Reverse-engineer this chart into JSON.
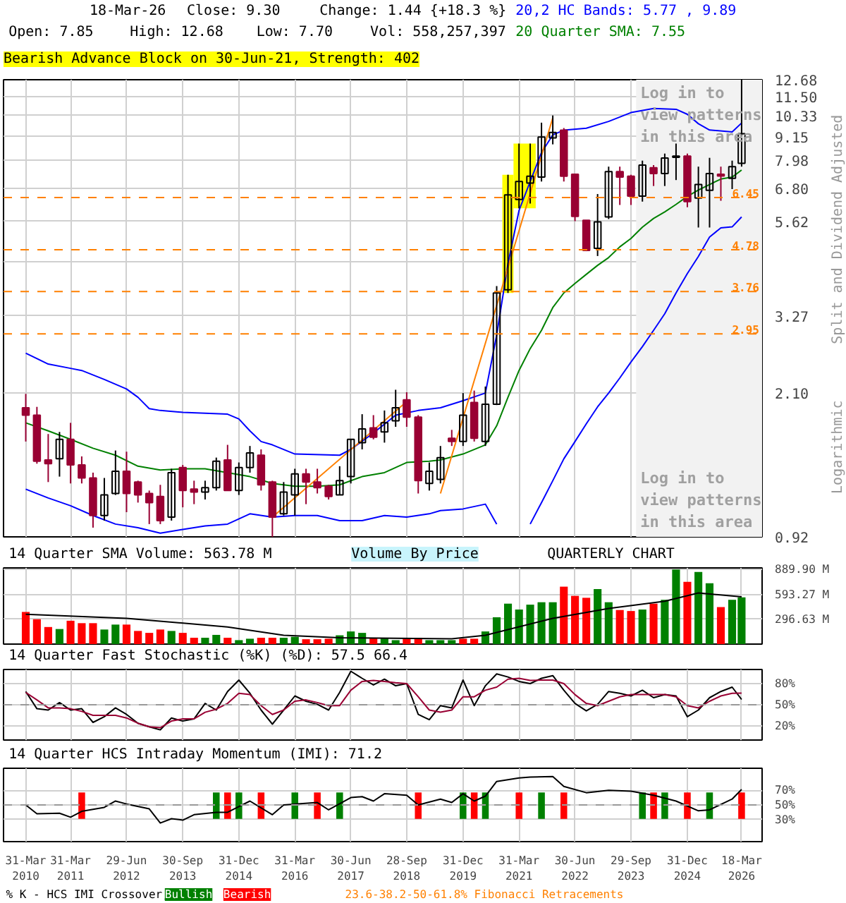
{
  "chart_data": [
    {
      "type": "candlestick",
      "title": "Bearish Advance Block on 30-Jun-21, Strength: 402",
      "ylabel": "Split and Dividend Adjusted",
      "annotations": [
        "18-Mar-26",
        "Close: 9.30",
        "Change: 1.44 {+18.3 %}",
        "Open: 7.85",
        "High: 12.68",
        "Low: 7.70",
        "Vol: 558,257,397",
        "Logarithmic",
        "Volume By Price"
      ],
      "x": [
        "2010-03-31",
        "2010-06-30",
        "2010-09-30",
        "2010-12-31",
        "2011-03-31",
        "2011-06-30",
        "2011-09-30",
        "2011-12-31",
        "2012-03-31",
        "2012-06-29",
        "2012-09-30",
        "2012-12-31",
        "2013-03-31",
        "2013-06-30",
        "2013-09-30",
        "2013-12-31",
        "2014-03-31",
        "2014-06-30",
        "2014-09-30",
        "2014-12-31",
        "2015-03-31",
        "2015-06-30",
        "2015-09-30",
        "2015-12-31",
        "2016-03-31",
        "2016-06-30",
        "2016-09-30",
        "2016-12-31",
        "2017-03-31",
        "2017-06-30",
        "2017-09-30",
        "2017-12-31",
        "2018-03-31",
        "2018-06-30",
        "2018-09-28",
        "2018-12-31",
        "2019-03-31",
        "2019-06-30",
        "2019-09-30",
        "2019-12-31",
        "2020-03-31",
        "2020-06-30",
        "2020-09-30",
        "2020-12-31",
        "2021-03-31",
        "2021-06-30",
        "2021-09-30",
        "2021-12-31",
        "2022-03-31",
        "2022-06-30",
        "2022-09-30",
        "2022-12-31",
        "2023-03-31",
        "2023-06-30",
        "2023-09-29",
        "2023-12-31",
        "2024-03-31",
        "2024-06-30",
        "2024-09-30",
        "2024-12-31",
        "2025-03-31",
        "2025-06-30",
        "2025-09-30",
        "2025-12-31",
        "2026-03-18"
      ],
      "ohlc": [
        [
          1.93,
          2.09,
          1.59,
          1.85
        ],
        [
          1.85,
          1.94,
          1.4,
          1.42
        ],
        [
          1.43,
          1.66,
          1.26,
          1.4
        ],
        [
          1.44,
          1.68,
          1.3,
          1.61
        ],
        [
          1.61,
          1.77,
          1.25,
          1.39
        ],
        [
          1.39,
          1.46,
          1.25,
          1.29
        ],
        [
          1.29,
          1.33,
          0.97,
          1.04
        ],
        [
          1.04,
          1.29,
          1.01,
          1.17
        ],
        [
          1.18,
          1.51,
          1.17,
          1.34
        ],
        [
          1.34,
          1.5,
          1.06,
          1.18
        ],
        [
          1.26,
          1.27,
          1.12,
          1.17
        ],
        [
          1.18,
          1.2,
          0.99,
          1.12
        ],
        [
          1.16,
          1.24,
          0.99,
          1.01
        ],
        [
          1.03,
          1.36,
          1.01,
          1.33
        ],
        [
          1.37,
          1.39,
          1.09,
          1.2
        ],
        [
          1.21,
          1.27,
          1.11,
          1.19
        ],
        [
          1.19,
          1.27,
          1.14,
          1.22
        ],
        [
          1.22,
          1.45,
          1.2,
          1.42
        ],
        [
          1.43,
          1.56,
          1.2,
          1.2
        ],
        [
          1.2,
          1.41,
          1.17,
          1.37
        ],
        [
          1.37,
          1.55,
          1.33,
          1.49
        ],
        [
          1.47,
          1.52,
          1.2,
          1.24
        ],
        [
          1.26,
          1.27,
          0.92,
          1.03
        ],
        [
          1.05,
          1.26,
          1.04,
          1.19
        ],
        [
          1.17,
          1.36,
          1.04,
          1.32
        ],
        [
          1.32,
          1.36,
          1.11,
          1.26
        ],
        [
          1.26,
          1.36,
          1.18,
          1.22
        ],
        [
          1.23,
          1.24,
          1.14,
          1.16
        ],
        [
          1.17,
          1.38,
          1.17,
          1.27
        ],
        [
          1.3,
          1.61,
          1.25,
          1.61
        ],
        [
          1.58,
          1.86,
          1.52,
          1.71
        ],
        [
          1.72,
          1.85,
          1.61,
          1.63
        ],
        [
          1.68,
          1.9,
          1.58,
          1.77
        ],
        [
          1.79,
          2.14,
          1.73,
          1.93
        ],
        [
          2.02,
          2.11,
          1.73,
          1.83
        ],
        [
          1.83,
          1.85,
          1.18,
          1.27
        ],
        [
          1.25,
          1.41,
          1.2,
          1.34
        ],
        [
          1.28,
          1.55,
          1.25,
          1.45
        ],
        [
          1.62,
          1.7,
          1.55,
          1.59
        ],
        [
          1.59,
          2.1,
          1.55,
          1.85
        ],
        [
          1.99,
          2.13,
          1.59,
          1.62
        ],
        [
          1.59,
          2.18,
          1.55,
          1.97
        ],
        [
          1.97,
          3.88,
          1.96,
          3.73
        ],
        [
          3.8,
          7.35,
          3.73,
          6.55
        ],
        [
          6.38,
          8.79,
          6.06,
          7.07
        ],
        [
          7.01,
          8.79,
          6.23,
          7.29
        ],
        [
          7.25,
          9.91,
          7.07,
          9.13
        ],
        [
          9.08,
          10.33,
          8.75,
          9.37
        ],
        [
          9.49,
          9.61,
          7.07,
          7.29
        ],
        [
          7.37,
          7.37,
          5.63,
          5.79
        ],
        [
          5.66,
          5.66,
          4.74,
          4.76
        ],
        [
          4.82,
          6.58,
          4.61,
          5.61
        ],
        [
          5.77,
          7.7,
          5.7,
          7.48
        ],
        [
          7.48,
          7.7,
          6.18,
          7.25
        ],
        [
          7.29,
          7.35,
          6.18,
          6.5
        ],
        [
          6.5,
          7.97,
          6.3,
          7.77
        ],
        [
          7.65,
          7.77,
          6.89,
          7.4
        ],
        [
          7.4,
          8.3,
          6.89,
          8.09
        ],
        [
          8.12,
          8.79,
          7.13,
          8.18
        ],
        [
          8.18,
          8.3,
          6.1,
          6.3
        ],
        [
          6.43,
          7.7,
          5.43,
          6.95
        ],
        [
          6.72,
          8.1,
          5.43,
          7.4
        ],
        [
          7.37,
          7.7,
          6.33,
          7.3
        ],
        [
          7.2,
          7.97,
          6.77,
          7.7
        ],
        [
          7.85,
          12.68,
          7.7,
          9.3
        ]
      ],
      "colors": [
        "#990033",
        "#990033",
        "#990033",
        "#000000",
        "#990033",
        "#990033",
        "#990033",
        "#000000",
        "#000000",
        "#990033",
        "#990033",
        "#990033",
        "#990033",
        "#000000",
        "#990033",
        "#990033",
        "#000000",
        "#000000",
        "#990033",
        "#000000",
        "#000000",
        "#990033",
        "#990033",
        "#000000",
        "#000000",
        "#990033",
        "#990033",
        "#990033",
        "#000000",
        "#000000",
        "#000000",
        "#990033",
        "#000000",
        "#000000",
        "#990033",
        "#990033",
        "#000000",
        "#000000",
        "#990033",
        "#000000",
        "#990033",
        "#000000",
        "#000000",
        "#000000",
        "#000000",
        "#000000",
        "#000000",
        "#000000",
        "#990033",
        "#990033",
        "#990033",
        "#000000",
        "#000000",
        "#990033",
        "#990033",
        "#000000",
        "#990033",
        "#000000",
        "#000000",
        "#990033",
        "#000000",
        "#000000",
        "#990033",
        "#000000",
        "#000000"
      ],
      "series": [
        {
          "type": "line",
          "name": "20,2 HC Bands: 5.77 , 9.89",
          "color": "#0000ff",
          "x": [
            "2010-03-31",
            "2010-09-30",
            "2011-03-31",
            "2011-06-30",
            "2011-12-31",
            "2012-06-29",
            "2012-09-30",
            "2012-12-31",
            "2013-03-31",
            "2013-09-30",
            "2014-09-30",
            "2014-12-31",
            "2015-03-31",
            "2015-06-30",
            "2015-09-30",
            "2016-03-31",
            "2017-03-31",
            "2017-06-30",
            "2017-12-31",
            "2018-06-30",
            "2018-12-31",
            "2019-06-30",
            "2019-12-31",
            "2020-06-30",
            "2020-09-30",
            "2020-12-31",
            "2021-03-31",
            "2021-06-30",
            "2021-09-30",
            "2021-12-31",
            "2022-03-31",
            "2022-09-30",
            "2023-03-31",
            "2023-09-29",
            "2024-03-31",
            "2024-09-30",
            "2024-12-31",
            "2025-03-31",
            "2025-06-30",
            "2025-12-31",
            "2026-03-18"
          ],
          "values": [
            2.64,
            2.48,
            2.42,
            2.39,
            2.27,
            2.15,
            2.05,
            1.92,
            1.9,
            1.88,
            1.86,
            1.81,
            1.69,
            1.59,
            1.56,
            1.48,
            1.47,
            1.52,
            1.67,
            1.85,
            1.9,
            1.93,
            2.01,
            2.1,
            2.93,
            4.41,
            5.99,
            7.07,
            8.35,
            9.24,
            9.49,
            9.6,
            9.98,
            10.5,
            10.75,
            10.7,
            10.4,
            9.85,
            9.5,
            9.4,
            9.89
          ]
        },
        {
          "type": "line",
          "color": "#0000ff",
          "x": [
            "2010-03-31",
            "2010-09-30",
            "2011-03-31",
            "2011-09-30",
            "2012-03-31",
            "2012-09-30",
            "2013-03-31",
            "2013-09-30",
            "2014-03-31",
            "2014-09-30",
            "2015-03-31",
            "2015-09-30",
            "2016-03-31",
            "2016-09-30",
            "2017-03-31",
            "2017-09-30",
            "2018-03-31",
            "2018-09-28",
            "2019-03-31",
            "2019-06-30",
            "2019-12-31",
            "2020-06-30",
            "2020-09-30",
            "2020-12-31",
            "2021-03-31",
            "2021-06-30",
            "2021-09-30",
            "2021-12-31",
            "2022-03-31",
            "2022-06-30",
            "2022-09-30",
            "2022-12-31",
            "2023-03-31",
            "2023-06-30",
            "2023-09-29",
            "2023-12-31",
            "2024-03-31",
            "2024-06-30",
            "2024-09-30",
            "2024-12-31",
            "2025-03-31",
            "2025-06-30",
            "2025-09-30",
            "2025-12-31",
            "2026-03-18"
          ],
          "values": [
            1.21,
            1.15,
            1.1,
            1.04,
            0.99,
            0.97,
            0.94,
            0.96,
            0.98,
            0.99,
            1.05,
            1.03,
            1.04,
            1.04,
            1.01,
            1.01,
            1.04,
            1.03,
            1.05,
            1.07,
            1.08,
            1.11,
            0.99,
            null,
            null,
            0.99,
            1.12,
            1.27,
            1.44,
            1.59,
            1.76,
            1.94,
            2.1,
            2.29,
            2.51,
            2.74,
            3.01,
            3.31,
            3.73,
            4.17,
            4.6,
            5.14,
            5.42,
            5.45,
            5.77
          ]
        },
        {
          "type": "line",
          "name": "20 Quarter SMA: 7.55",
          "color": "#008000",
          "x": [
            "2010-03-31",
            "2010-09-30",
            "2011-03-31",
            "2011-09-30",
            "2012-03-31",
            "2012-09-30",
            "2013-03-31",
            "2013-09-30",
            "2014-03-31",
            "2014-09-30",
            "2015-03-31",
            "2015-09-30",
            "2016-03-31",
            "2016-09-30",
            "2017-03-31",
            "2017-09-30",
            "2018-03-31",
            "2018-09-28",
            "2019-03-31",
            "2019-06-30",
            "2019-12-31",
            "2020-06-30",
            "2020-09-30",
            "2020-12-31",
            "2021-03-31",
            "2021-06-30",
            "2021-09-30",
            "2021-12-31",
            "2022-03-31",
            "2022-06-30",
            "2022-09-30",
            "2022-12-31",
            "2023-03-31",
            "2023-06-30",
            "2023-09-29",
            "2023-12-31",
            "2024-03-31",
            "2024-06-30",
            "2024-09-30",
            "2024-12-31",
            "2025-03-31",
            "2025-06-30",
            "2025-09-30",
            "2025-12-31",
            "2026-03-18"
          ],
          "values": [
            1.77,
            1.69,
            1.61,
            1.53,
            1.47,
            1.38,
            1.35,
            1.36,
            1.36,
            1.33,
            1.3,
            1.25,
            1.23,
            1.23,
            1.24,
            1.3,
            1.33,
            1.41,
            1.42,
            1.43,
            1.48,
            1.56,
            1.74,
            2.05,
            2.39,
            2.71,
            3.01,
            3.43,
            3.73,
            3.94,
            4.15,
            4.37,
            4.57,
            4.86,
            5.1,
            5.44,
            5.72,
            5.94,
            6.2,
            6.49,
            6.73,
            6.95,
            7.17,
            7.25,
            7.55
          ]
        },
        {
          "type": "line",
          "color": "#ff8000",
          "x": [
            "2015-09-30",
            "2018-09-28"
          ],
          "values": [
            1.03,
            2.0
          ]
        },
        {
          "type": "line",
          "color": "#ff8000",
          "x": [
            "2019-06-30",
            "2021-12-31"
          ],
          "values": [
            1.18,
            10.19
          ]
        }
      ],
      "bands": [
        {
          "axis": "x",
          "from": "2020-11-15",
          "to": "2021-02-14",
          "color": "#ffff00"
        },
        {
          "axis": "x",
          "from": "2021-02-14",
          "to": "2021-08-14",
          "color": "#ffff00"
        },
        {
          "axis": "x",
          "from": "2023-11-10",
          "to": "2026-09-01",
          "color": "#f2f2f2",
          "label": "Log in to\nview patterns\nin this area"
        }
      ],
      "ref_lines": [
        {
          "axis": "y",
          "value": 6.45,
          "label": "6.45",
          "color": "#ff8000",
          "line_style": "dashed"
        },
        {
          "axis": "y",
          "value": 4.78,
          "label": "4.78",
          "color": "#ff8000",
          "line_style": "dashed"
        },
        {
          "axis": "y",
          "value": 3.76,
          "label": "3.76",
          "color": "#ff8000",
          "line_style": "dashed"
        },
        {
          "axis": "y",
          "value": 2.95,
          "label": "2.95",
          "color": "#ff8000",
          "line_style": "dashed"
        }
      ],
      "xlim": [
        "2009-10-01",
        "2026-09-01"
      ],
      "xticks": [
        "2010-03-31",
        "2011-03-31",
        "2012-06-29",
        "2013-09-30",
        "2014-12-31",
        "2016-03-31",
        "2017-06-30",
        "2018-09-28",
        "2019-12-31",
        "2021-03-31",
        "2022-06-30",
        "2023-09-29",
        "2024-12-31",
        "2026-03-18"
      ],
      "ylim": [
        0.92,
        12.68
      ],
      "yticks": [
        0.92,
        {
          "value": 2.1,
          "label": "2.10"
        },
        3.27,
        {
          "value": 4.45,
          "label": null
        },
        5.62,
        {
          "value": 6.8,
          "label": "6.80"
        },
        7.98,
        9.15,
        10.33,
        {
          "value": 11.5,
          "label": "11.50"
        },
        12.68
      ],
      "log": true,
      "grid": true,
      "tick_labels": "y",
      "legend": "top right"
    },
    {
      "type": "bar",
      "title": "14 Quarter SMA Volume: 563.78 M",
      "annotations": [
        "QUARTERLY CHART"
      ],
      "x": [
        "2010-03-31",
        "2010-06-30",
        "2010-09-30",
        "2010-12-31",
        "2011-03-31",
        "2011-06-30",
        "2011-09-30",
        "2011-12-31",
        "2012-03-31",
        "2012-06-29",
        "2012-09-30",
        "2012-12-31",
        "2013-03-31",
        "2013-06-30",
        "2013-09-30",
        "2013-12-31",
        "2014-03-31",
        "2014-06-30",
        "2014-09-30",
        "2014-12-31",
        "2015-03-31",
        "2015-06-30",
        "2015-09-30",
        "2015-12-31",
        "2016-03-31",
        "2016-06-30",
        "2016-09-30",
        "2016-12-31",
        "2017-03-31",
        "2017-06-30",
        "2017-09-30",
        "2017-12-31",
        "2018-03-31",
        "2018-06-30",
        "2018-09-28",
        "2018-12-31",
        "2019-03-31",
        "2019-06-30",
        "2019-09-30",
        "2019-12-31",
        "2020-03-31",
        "2020-06-30",
        "2020-09-30",
        "2020-12-31",
        "2021-03-31",
        "2021-06-30",
        "2021-09-30",
        "2021-12-31",
        "2022-03-31",
        "2022-06-30",
        "2022-09-30",
        "2022-12-31",
        "2023-03-31",
        "2023-06-30",
        "2023-09-29",
        "2023-12-31",
        "2024-03-31",
        "2024-06-30",
        "2024-09-30",
        "2024-12-31",
        "2025-03-31",
        "2025-06-30",
        "2025-09-30",
        "2025-12-31",
        "2026-03-18"
      ],
      "series": [
        {
          "type": "bar",
          "values": [
            384,
            297,
            204,
            180,
            279,
            250,
            250,
            174,
            233,
            233,
            157,
            134,
            174,
            157,
            134,
            76,
            76,
            110,
            76,
            47,
            64,
            76,
            76,
            76,
            87,
            58,
            58,
            64,
            105,
            151,
            134,
            76,
            76,
            47,
            76,
            76,
            47,
            47,
            47,
            64,
            64,
            151,
            320,
            483,
            413,
            471,
            500,
            500,
            686,
            576,
            553,
            657,
            500,
            407,
            395,
            413,
            483,
            529,
            890,
            744,
            861,
            727,
            442,
            529,
            558.26
          ],
          "colors": [
            "#ff0000",
            "#ff0000",
            "#ff0000",
            "#008000",
            "#ff0000",
            "#ff0000",
            "#ff0000",
            "#008000",
            "#008000",
            "#ff0000",
            "#ff0000",
            "#ff0000",
            "#ff0000",
            "#008000",
            "#ff0000",
            "#ff0000",
            "#008000",
            "#008000",
            "#ff0000",
            "#008000",
            "#008000",
            "#ff0000",
            "#ff0000",
            "#008000",
            "#008000",
            "#ff0000",
            "#ff0000",
            "#ff0000",
            "#008000",
            "#008000",
            "#008000",
            "#ff0000",
            "#008000",
            "#008000",
            "#ff0000",
            "#ff0000",
            "#008000",
            "#008000",
            "#008000",
            "#ff0000",
            "#ff0000",
            "#008000",
            "#008000",
            "#008000",
            "#008000",
            "#008000",
            "#008000",
            "#008000",
            "#ff0000",
            "#ff0000",
            "#ff0000",
            "#008000",
            "#008000",
            "#ff0000",
            "#ff0000",
            "#008000",
            "#ff0000",
            "#008000",
            "#008000",
            "#ff0000",
            "#008000",
            "#008000",
            "#ff0000",
            "#008000",
            "#008000"
          ]
        },
        {
          "type": "line",
          "color": "#000000",
          "x": [
            "2010-03-31",
            "2012-06-29",
            "2014-09-30",
            "2015-12-31",
            "2017-03-31",
            "2019-09-30",
            "2020-06-30",
            "2021-12-31",
            "2023-03-31",
            "2024-06-30",
            "2025-03-31",
            "2026-03-18"
          ],
          "values": [
            355,
            308,
            204,
            105,
            76,
            64,
            105,
            308,
            425,
            512,
            611,
            563.78
          ]
        }
      ],
      "xlim": [
        "2009-10-01",
        "2026-09-01"
      ],
      "xticks": [
        "2010-03-31",
        "2011-03-31",
        "2012-06-29",
        "2013-09-30",
        "2014-12-31",
        "2016-03-31",
        "2017-06-30",
        "2018-09-28",
        "2019-12-31",
        "2021-03-31",
        "2022-06-30",
        "2023-09-29",
        "2024-12-31",
        "2026-03-18"
      ],
      "ylim": [
        0,
        910
      ],
      "yticks": [
        {
          "value": 296.63,
          "label": "296.63 M"
        },
        {
          "value": 593.27,
          "label": "593.27 M"
        },
        {
          "value": 889.9,
          "label": "889.90 M"
        }
      ],
      "grid": true,
      "tick_labels": "y"
    },
    {
      "type": "line",
      "title": "14 Quarter Fast Stochastic (%K) (%D): 57.5 66.4",
      "x": [
        "2010-03-31",
        "2010-06-30",
        "2010-09-30",
        "2010-12-31",
        "2011-03-31",
        "2011-06-30",
        "2011-09-30",
        "2011-12-31",
        "2012-03-31",
        "2012-06-29",
        "2012-09-30",
        "2012-12-31",
        "2013-03-31",
        "2013-06-30",
        "2013-09-30",
        "2013-12-31",
        "2014-03-31",
        "2014-06-30",
        "2014-09-30",
        "2014-12-31",
        "2015-03-31",
        "2015-06-30",
        "2015-09-30",
        "2015-12-31",
        "2016-03-31",
        "2016-06-30",
        "2016-09-30",
        "2016-12-31",
        "2017-03-31",
        "2017-06-30",
        "2017-09-30",
        "2017-12-31",
        "2018-03-31",
        "2018-06-30",
        "2018-09-28",
        "2018-12-31",
        "2019-03-31",
        "2019-06-30",
        "2019-09-30",
        "2019-12-31",
        "2020-03-31",
        "2020-06-30",
        "2020-09-30",
        "2020-12-31",
        "2021-03-31",
        "2021-06-30",
        "2021-09-30",
        "2021-12-31",
        "2022-03-31",
        "2022-06-30",
        "2022-09-30",
        "2022-12-31",
        "2023-03-31",
        "2023-06-30",
        "2023-09-29",
        "2023-12-31",
        "2024-03-31",
        "2024-06-30",
        "2024-09-30",
        "2024-12-31",
        "2025-03-31",
        "2025-06-30",
        "2025-09-30",
        "2025-12-31",
        "2026-03-18"
      ],
      "series": [
        {
          "color": "#000000",
          "values": [
            68.8,
            44.4,
            42.5,
            53.1,
            42.5,
            44.4,
            25,
            33.1,
            45.6,
            36.3,
            23.8,
            18.8,
            14.4,
            31.3,
            26.9,
            30,
            51.9,
            42.5,
            68.8,
            85,
            66.3,
            42.5,
            22.5,
            42.5,
            62.5,
            55,
            50.6,
            42.5,
            67.5,
            97.5,
            87.5,
            78.1,
            86.3,
            76.9,
            80,
            36.3,
            28.8,
            48.8,
            45.6,
            85,
            48.8,
            76.9,
            93.8,
            89.4,
            83.1,
            80,
            87.5,
            91.3,
            70.6,
            51.9,
            41.3,
            50.6,
            68.8,
            66.3,
            62.5,
            70.6,
            60,
            64.4,
            62.5,
            33.1,
            42.5,
            60,
            68.8,
            75,
            57.5
          ]
        },
        {
          "color": "#990033",
          "values": [
            67.5,
            56.9,
            45.6,
            45.6,
            44.4,
            40.6,
            35,
            35,
            35,
            31.3,
            23.8,
            18.8,
            17.5,
            26.9,
            30,
            30,
            39.4,
            43.8,
            51.9,
            66.3,
            64.4,
            48.8,
            36.3,
            42.5,
            55,
            56.9,
            53.1,
            48.8,
            48.8,
            70.6,
            83.1,
            84.4,
            83.1,
            81.3,
            80,
            61.3,
            42.5,
            39.4,
            42.5,
            61.3,
            61.3,
            70.6,
            75,
            86.3,
            87.5,
            84.4,
            85,
            85,
            80,
            64.4,
            51.9,
            48.8,
            55,
            61.3,
            64.4,
            64.4,
            64.4,
            64.4,
            61.3,
            48.8,
            45.6,
            55,
            62.5,
            66.3,
            66.4
          ]
        }
      ],
      "ref_lines": [
        {
          "axis": "y",
          "value": 50,
          "color": "#999999",
          "line_style": "dashed"
        }
      ],
      "xlim": [
        "2009-10-01",
        "2026-09-01"
      ],
      "xticks": [
        "2010-03-31",
        "2011-03-31",
        "2012-06-29",
        "2013-09-30",
        "2014-12-31",
        "2016-03-31",
        "2017-06-30",
        "2018-09-28",
        "2019-12-31",
        "2021-03-31",
        "2022-06-30",
        "2023-09-29",
        "2024-12-31",
        "2026-03-18"
      ],
      "ylim": [
        0,
        100
      ],
      "yticks": [
        {
          "value": 20,
          "label": "20%"
        },
        {
          "value": 50,
          "label": "50%"
        },
        {
          "value": 80,
          "label": "80%"
        }
      ],
      "grid": true,
      "tick_labels": "y"
    },
    {
      "type": "line",
      "title": "14 Quarter HCS Intraday Momentum (IMI): 71.2",
      "legend_title": "% K - HCS IMI Crossover,",
      "annotations": [
        "23.6-38.2-50-61.8% Fibonacci Retracements"
      ],
      "series": [
        {
          "type": "bar",
          "name": "Bullish",
          "color": "#008000",
          "base": [
            31,
            31,
            31,
            31,
            31,
            31,
            31,
            31,
            31,
            31
          ],
          "x": [
            "2014-06-30",
            "2014-12-31",
            "2016-03-31",
            "2017-03-31",
            "2019-12-31",
            "2020-06-30",
            "2021-09-30",
            "2023-12-31",
            "2024-06-30",
            "2025-06-30"
          ],
          "values": [
            36,
            36,
            36,
            36,
            36,
            36,
            36,
            36,
            36,
            36
          ]
        },
        {
          "type": "bar",
          "name": "Bearish",
          "color": "#ff0000",
          "base": [
            31,
            31,
            31,
            31,
            31,
            31,
            31,
            31,
            31,
            31,
            31
          ],
          "x": [
            "2011-06-30",
            "2014-09-30",
            "2015-06-30",
            "2016-09-30",
            "2018-12-31",
            "2020-03-31",
            "2021-03-31",
            "2022-03-31",
            "2024-03-31",
            "2024-12-31",
            "2026-03-18"
          ],
          "values": [
            36,
            36,
            36,
            36,
            36,
            36,
            36,
            36,
            36,
            36,
            36
          ]
        },
        {
          "type": "line",
          "color": "#000000",
          "x": [
            "2010-03-31",
            "2010-06-30",
            "2010-12-31",
            "2011-03-31",
            "2011-06-30",
            "2011-12-31",
            "2012-03-31",
            "2012-06-29",
            "2012-12-31",
            "2013-03-31",
            "2013-06-30",
            "2013-09-30",
            "2013-12-31",
            "2014-06-30",
            "2014-09-30",
            "2015-03-31",
            "2015-09-30",
            "2015-12-31",
            "2016-09-30",
            "2016-12-31",
            "2017-06-30",
            "2017-09-30",
            "2017-12-31",
            "2018-03-31",
            "2018-09-28",
            "2018-12-31",
            "2019-06-30",
            "2019-09-30",
            "2019-12-31",
            "2020-03-31",
            "2020-06-30",
            "2020-09-30",
            "2021-03-31",
            "2021-06-30",
            "2021-12-31",
            "2022-03-31",
            "2022-09-30",
            "2023-03-31",
            "2023-09-29",
            "2024-03-31",
            "2024-09-30",
            "2025-03-31",
            "2025-06-30",
            "2025-12-31",
            "2026-03-18"
          ],
          "values": [
            50,
            38,
            38.7,
            33.3,
            41.3,
            46.7,
            55.3,
            51.3,
            44.7,
            25.3,
            31.3,
            29.3,
            36.7,
            40,
            40,
            55.3,
            36.7,
            50,
            53.3,
            43.3,
            60,
            61.3,
            55.3,
            65.3,
            63.3,
            50,
            58,
            53.3,
            65.3,
            55.3,
            62,
            82,
            86.7,
            88,
            88.7,
            75.3,
            66.7,
            70,
            68.7,
            63.3,
            55.3,
            42,
            43.3,
            58,
            71.2
          ]
        }
      ],
      "ref_lines": [
        {
          "axis": "y",
          "value": 50,
          "color": "#999999",
          "line_style": "dashed"
        }
      ],
      "xlim": [
        "2009-10-01",
        "2026-09-01"
      ],
      "xticks": [
        {
          "value": "2010-03-31",
          "label": "31-Mar\n2010"
        },
        {
          "value": "2011-03-31",
          "label": "31-Mar\n2011"
        },
        {
          "value": "2012-06-29",
          "label": "29-Jun\n2012"
        },
        {
          "value": "2013-09-30",
          "label": "30-Sep\n2013"
        },
        {
          "value": "2014-12-31",
          "label": "31-Dec\n2014"
        },
        {
          "value": "2016-03-31",
          "label": "31-Mar\n2016"
        },
        {
          "value": "2017-06-30",
          "label": "30-Jun\n2017"
        },
        {
          "value": "2018-09-28",
          "label": "28-Sep\n2018"
        },
        {
          "value": "2019-12-31",
          "label": "31-Dec\n2019"
        },
        {
          "value": "2021-03-31",
          "label": "31-Mar\n2021"
        },
        {
          "value": "2022-06-30",
          "label": "30-Jun\n2022"
        },
        {
          "value": "2023-09-29",
          "label": "29-Sep\n2023"
        },
        {
          "value": "2024-12-31",
          "label": "31-Dec\n2024"
        },
        {
          "value": "2026-03-18",
          "label": "18-Mar\n2026"
        }
      ],
      "ylim": [
        0,
        100
      ],
      "yticks": [
        {
          "value": 30,
          "label": "30%"
        },
        {
          "value": 50,
          "label": "50%"
        },
        {
          "value": 70,
          "label": "70%"
        }
      ],
      "grid": true,
      "legend": "bottom"
    }
  ]
}
